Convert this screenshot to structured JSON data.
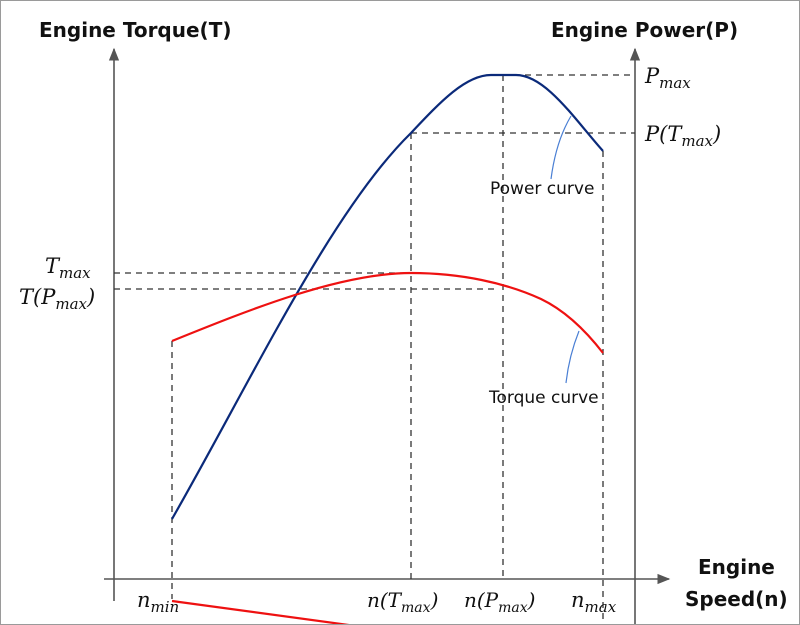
{
  "titles": {
    "torque_axis": "Engine Torque(T)",
    "power_axis": "Engine Power(P)",
    "speed_axis_line1": "Engine",
    "speed_axis_line2": "Speed(n)"
  },
  "labels": {
    "t_max_sym": "T",
    "t_max_sub": "max",
    "t_pmax_pre": "T(P",
    "t_pmax_sub": "max",
    "t_pmax_post": ")",
    "p_max_sym": "P",
    "p_max_sub": "max",
    "p_tmax_pre": "P(T",
    "p_tmax_sub": "max",
    "p_tmax_post": ")",
    "n_min_sym": "n",
    "n_min_sub": "min",
    "n_tmax_pre": "n(T",
    "n_tmax_sub": "max",
    "n_tmax_post": ")",
    "n_pmax_pre": "n(P",
    "n_pmax_sub": "max",
    "n_pmax_post": ")",
    "n_max_sym": "n",
    "n_max_sub": "max",
    "power_curve": "Power curve",
    "torque_curve": "Torque curve"
  },
  "colors": {
    "power": "#0b2a7a",
    "torque": "#ee1111",
    "leader": "#4a7fd4"
  }
}
